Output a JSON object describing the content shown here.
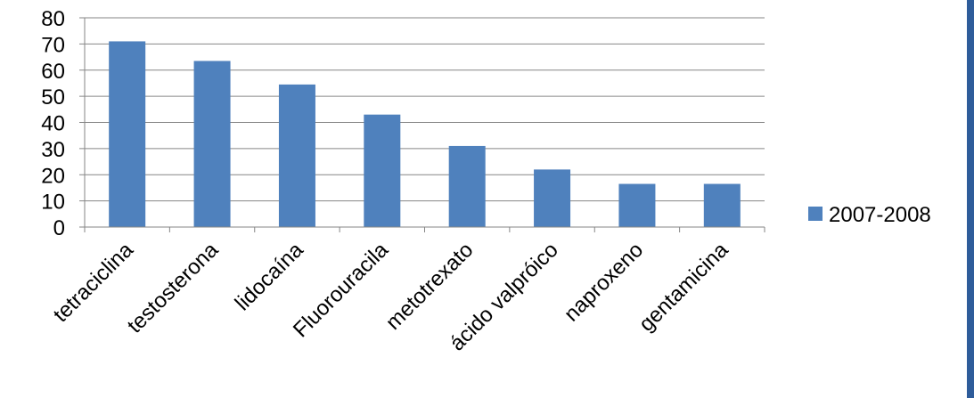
{
  "chart_data": {
    "type": "bar",
    "categories": [
      "tetraciclina",
      "testosterona",
      "lidocaína",
      "Fluorouracila",
      "metotrexato",
      "ácido valpróico",
      "naproxeno",
      "gentamicina"
    ],
    "series": [
      {
        "name": "2007-2008",
        "values": [
          71,
          63.5,
          54.5,
          43,
          31,
          22,
          16.5,
          16.5
        ]
      }
    ],
    "y_ticks": [
      "0",
      "10",
      "20",
      "30",
      "40",
      "50",
      "60",
      "70",
      "80"
    ],
    "ylim": [
      0,
      80
    ],
    "grid": true,
    "legend_position": "right",
    "colors": {
      "bar": "#4f81bd",
      "grid": "#868686",
      "axis": "#868686",
      "frame": "#2e5c9a"
    }
  }
}
